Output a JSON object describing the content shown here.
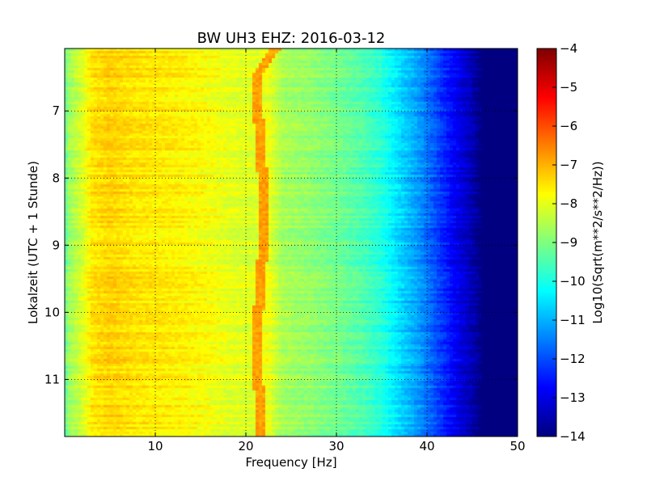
{
  "chart_data": {
    "type": "heatmap",
    "title": "BW UH3 EHZ: 2016-03-12",
    "xlabel": "Frequency [Hz]",
    "ylabel": "Lokalzeit (UTC + 1 Stunde)",
    "colorbar_label": "Log10(Sqrt(m**2/s**2/Hz))",
    "colormap": "jet",
    "xlim": [
      0,
      50
    ],
    "ylim": [
      6.07,
      11.85
    ],
    "y_inverted": true,
    "xticks": [
      10,
      20,
      30,
      40,
      50
    ],
    "xtick_labels": [
      "10",
      "20",
      "30",
      "40",
      "50"
    ],
    "yticks": [
      7,
      8,
      9,
      10,
      11
    ],
    "ytick_labels": [
      "7",
      "8",
      "9",
      "10",
      "11"
    ],
    "clim": [
      -14,
      -4
    ],
    "cticks": [
      -4,
      -5,
      -6,
      -7,
      -8,
      -9,
      -10,
      -11,
      -12,
      -13,
      -14
    ],
    "ctick_labels": [
      "−4",
      "−5",
      "−6",
      "−7",
      "−8",
      "−9",
      "−10",
      "−11",
      "−12",
      "−13",
      "−14"
    ],
    "grid": true,
    "spectral_profile": {
      "frequency_hz": [
        0,
        0.5,
        2,
        3,
        5,
        8,
        12,
        16,
        18,
        21,
        22.5,
        24,
        27,
        30,
        33,
        35,
        37,
        39,
        41,
        43,
        45,
        46,
        50
      ],
      "log10_amplitude": [
        -9.3,
        -8.7,
        -8.1,
        -7.5,
        -7.3,
        -7.5,
        -7.6,
        -7.8,
        -8.0,
        -8.1,
        -7.9,
        -8.6,
        -8.8,
        -9.1,
        -9.5,
        -9.9,
        -10.6,
        -11.2,
        -12.0,
        -12.8,
        -13.5,
        -14.0,
        -14.0
      ]
    },
    "spectral_line": {
      "label": "",
      "frequency_hz_by_time": [
        [
          6.07,
          23.3
        ],
        [
          6.5,
          21.1
        ],
        [
          7.5,
          21.6
        ],
        [
          8.5,
          22.1
        ],
        [
          9.0,
          21.9
        ],
        [
          10.0,
          21.4
        ],
        [
          10.8,
          21.3
        ],
        [
          11.85,
          21.7
        ]
      ],
      "log10_amplitude": -6.8
    }
  }
}
